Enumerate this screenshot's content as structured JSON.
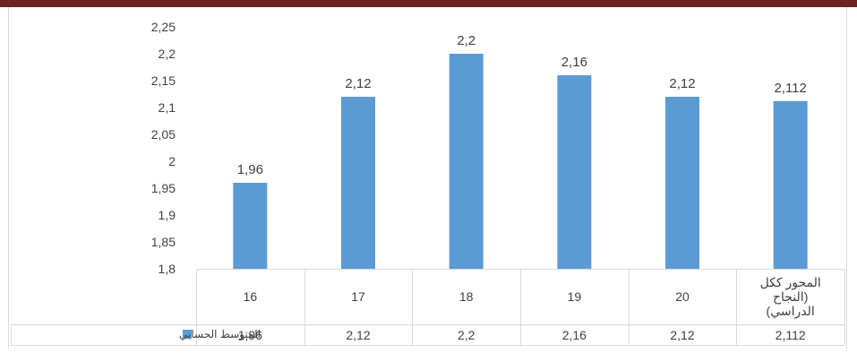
{
  "chart_data": {
    "type": "bar",
    "title": "",
    "xlabel": "",
    "ylabel": "",
    "categories": [
      "16",
      "17",
      "18",
      "19",
      "20",
      "المحور ككل (النجاح الدراسي)"
    ],
    "category_lines": [
      [
        "16"
      ],
      [
        "17"
      ],
      [
        "18"
      ],
      [
        "19"
      ],
      [
        "20"
      ],
      [
        "المحور ككل",
        "(النجاح",
        "الدراسي)"
      ]
    ],
    "series": [
      {
        "name": "المتوسط الحسابي",
        "values": [
          1.96,
          2.12,
          2.2,
          2.16,
          2.12,
          2.112
        ],
        "labels": [
          "1,96",
          "2,12",
          "2,2",
          "2,16",
          "2,12",
          "2,112"
        ],
        "color": "#5b9bd5"
      }
    ],
    "ylim": [
      1.8,
      2.25
    ],
    "yticks": [
      1.8,
      1.85,
      1.9,
      1.95,
      2,
      2.05,
      2.1,
      2.15,
      2.2,
      2.25
    ],
    "ytick_labels": [
      "1,8",
      "1,85",
      "1,9",
      "1,95",
      "2",
      "2,05",
      "2,1",
      "2,15",
      "2,2",
      "2,25"
    ],
    "grid": false,
    "legend": "bottom-left, inside data table",
    "data_table": true,
    "colors": {
      "top_band": "#6b2324",
      "bar": "#5b9bd5",
      "axis": "#d9d9d9",
      "text": "#404040"
    }
  }
}
